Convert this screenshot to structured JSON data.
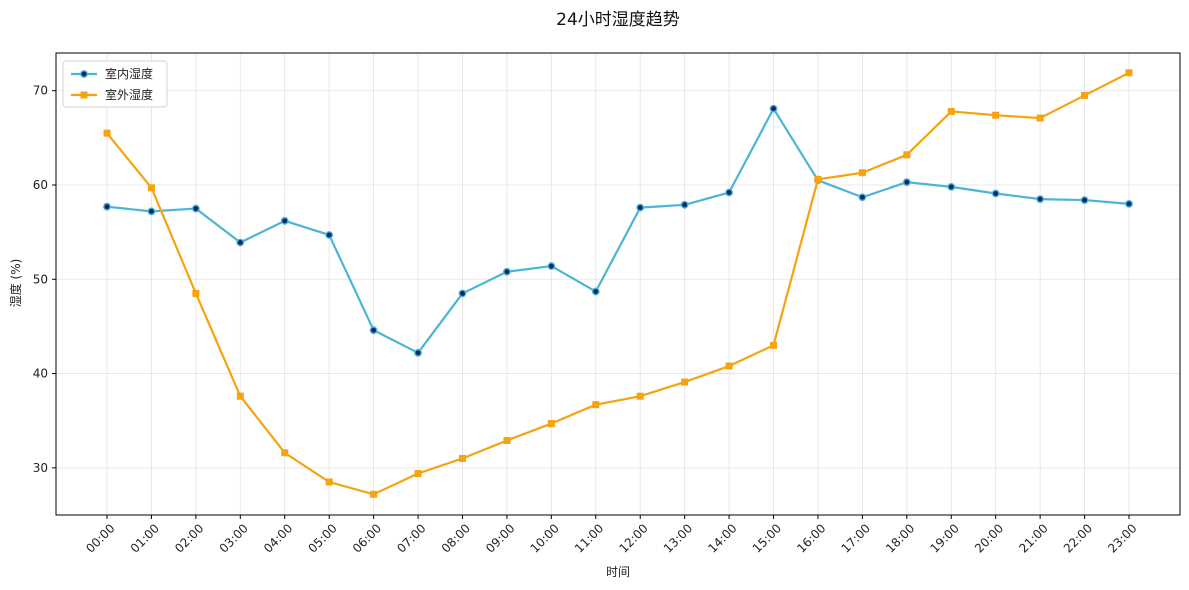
{
  "chart_data": {
    "type": "line",
    "title": "24小时湿度趋势",
    "xlabel": "时间",
    "ylabel": "湿度 (%)",
    "categories": [
      "00:00",
      "01:00",
      "02:00",
      "03:00",
      "04:00",
      "05:00",
      "06:00",
      "07:00",
      "08:00",
      "09:00",
      "10:00",
      "11:00",
      "12:00",
      "13:00",
      "14:00",
      "15:00",
      "16:00",
      "17:00",
      "18:00",
      "19:00",
      "20:00",
      "21:00",
      "22:00",
      "23:00"
    ],
    "ylim": [
      25,
      74
    ],
    "yticks": [
      30,
      40,
      50,
      60,
      70
    ],
    "grid": true,
    "legend": "top-left",
    "series": [
      {
        "name": "室内湿度",
        "color": "#4ab5d4",
        "marker": "circle",
        "values": [
          57.7,
          57.2,
          57.5,
          53.9,
          56.2,
          54.7,
          44.6,
          42.2,
          48.5,
          50.8,
          51.4,
          48.7,
          57.6,
          57.9,
          59.2,
          68.1,
          60.5,
          58.7,
          60.3,
          59.8,
          59.1,
          58.5,
          58.4,
          58.0
        ]
      },
      {
        "name": "室外湿度",
        "color": "#f5a30f",
        "marker": "square",
        "values": [
          65.5,
          59.7,
          48.5,
          37.6,
          31.6,
          28.5,
          27.2,
          29.4,
          31.0,
          32.9,
          34.7,
          36.7,
          37.6,
          39.1,
          40.8,
          43.0,
          60.6,
          61.3,
          63.2,
          67.8,
          67.4,
          67.1,
          69.5,
          71.9
        ]
      }
    ]
  }
}
